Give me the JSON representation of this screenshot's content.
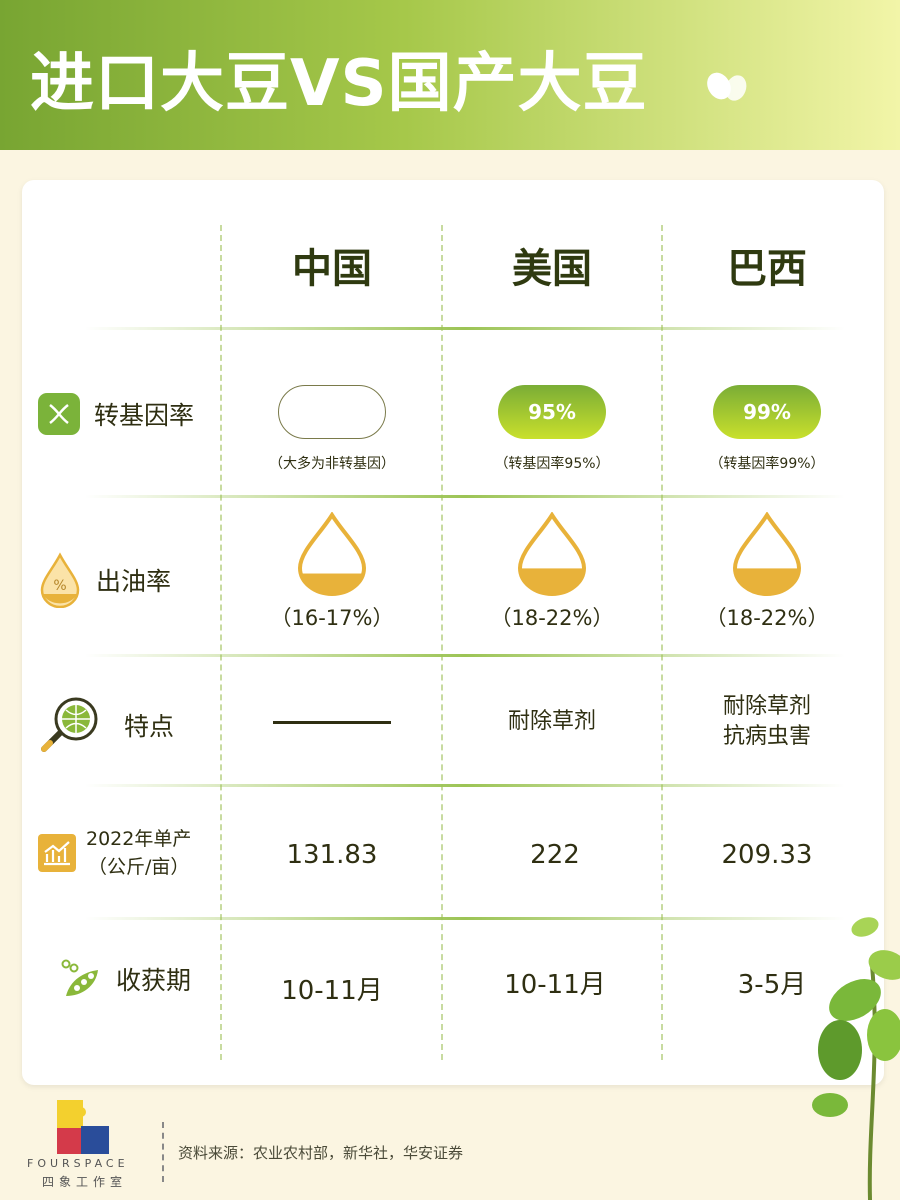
{
  "title": "进口大豆VS国产大豆",
  "columns": [
    "中国",
    "美国",
    "巴西"
  ],
  "rows": {
    "gmo": {
      "label": "转基因率",
      "icon": "dna-icon",
      "values": [
        {
          "pill": "",
          "note": "（大多为非转基因）",
          "filled": false
        },
        {
          "pill": "95%",
          "note": "（转基因率95%）",
          "filled": true
        },
        {
          "pill": "99%",
          "note": "（转基因率99%）",
          "filled": true
        }
      ]
    },
    "oil": {
      "label": "出油率",
      "icon": "oil-drop-percent-icon",
      "values": [
        {
          "text": "（16-17%）",
          "fill": 0.16
        },
        {
          "text": "（18-22%）",
          "fill": 0.2
        },
        {
          "text": "（18-22%）",
          "fill": 0.2
        }
      ]
    },
    "feature": {
      "label": "特点",
      "icon": "globe-magnifier-icon",
      "values": [
        {
          "text": "——"
        },
        {
          "text": "耐除草剂"
        },
        {
          "line1": "耐除草剂",
          "line2": "抗病虫害"
        }
      ]
    },
    "yield": {
      "label1": "2022年单产",
      "label2": "（公斤/亩）",
      "icon": "bar-chart-icon",
      "values": [
        "131.83",
        "222",
        "209.33"
      ]
    },
    "harvest": {
      "label": "收获期",
      "icon": "soybean-pod-icon",
      "values": [
        "10-11月",
        "10-11月",
        "3-5月"
      ]
    }
  },
  "footer": {
    "source": "资料来源：农业农村部，新华社，华安证券",
    "brand": "FOURSPACE",
    "brand_cn": "四象工作室"
  },
  "colors": {
    "green": "#8ab83a",
    "gold": "#e8b23a",
    "text": "#2f2f12"
  }
}
